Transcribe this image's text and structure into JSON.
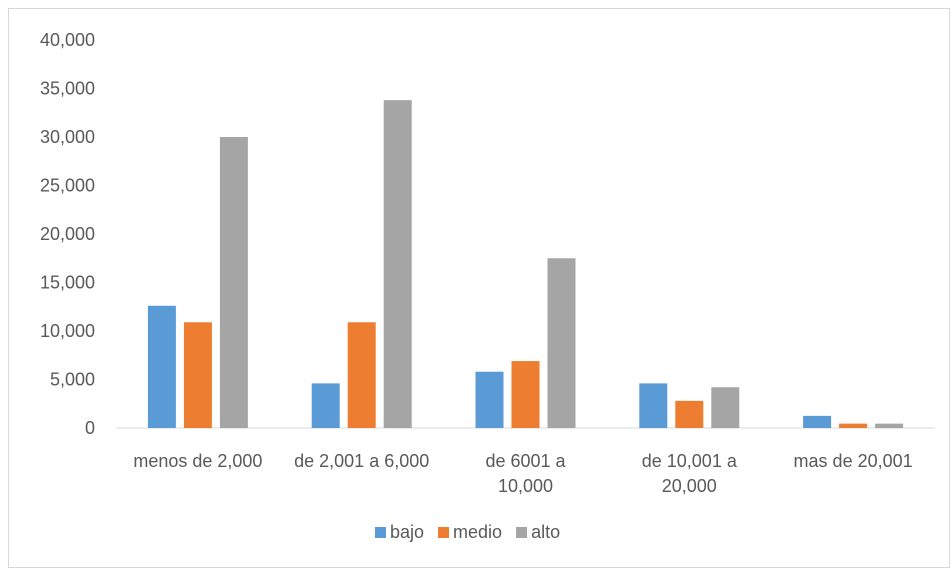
{
  "chart_data": {
    "type": "bar",
    "categories": [
      [
        "menos de 2,000"
      ],
      [
        "de 2,001 a 6,000"
      ],
      [
        "de 6001 a",
        "10,000"
      ],
      [
        "de 10,001 a",
        "20,000"
      ],
      [
        "mas de 20,001"
      ]
    ],
    "series": [
      {
        "name": "bajo",
        "color": "#5b9bd5",
        "values": [
          12600,
          4600,
          5800,
          4600,
          1250
        ]
      },
      {
        "name": "medio",
        "color": "#ed7d31",
        "values": [
          10900,
          10900,
          6900,
          2800,
          450
        ]
      },
      {
        "name": "alto",
        "color": "#a5a5a5",
        "values": [
          30000,
          33800,
          17500,
          4200,
          450
        ]
      }
    ],
    "yticks": [
      "0",
      "5,000",
      "10,000",
      "15,000",
      "20,000",
      "25,000",
      "30,000",
      "35,000",
      "40,000"
    ],
    "ylim": [
      0,
      40000
    ],
    "legend_position": "bottom",
    "grid": false
  }
}
